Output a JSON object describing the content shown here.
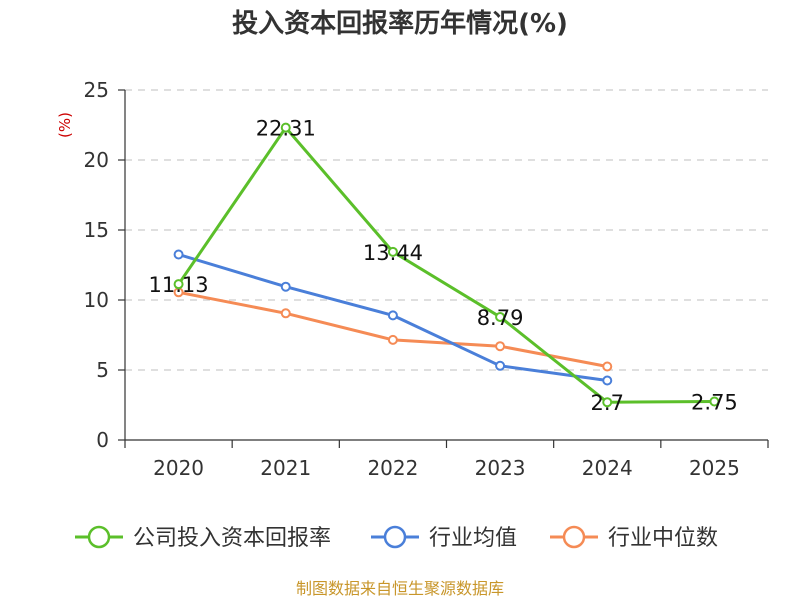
{
  "chart_data": {
    "type": "line",
    "title": "投入资本回报率历年情况(%)",
    "ylabel": "(%)",
    "xlabel": "",
    "categories": [
      "2020",
      "2021",
      "2022",
      "2023",
      "2024",
      "2025"
    ],
    "ylim": [
      0,
      25
    ],
    "yticks": [
      0,
      5,
      10,
      15,
      20,
      25
    ],
    "grid": true,
    "legend_position": "bottom",
    "series": [
      {
        "name": "公司投入资本回报率",
        "color": "#5bbf2a",
        "values": [
          11.13,
          22.31,
          13.44,
          8.79,
          2.7,
          2.75
        ],
        "labels": [
          "11.13",
          "22.31",
          "13.44",
          "8.79",
          "2.7",
          "2.75"
        ]
      },
      {
        "name": "行业均值",
        "color": "#4a7fd9",
        "values": [
          13.25,
          10.95,
          8.9,
          5.3,
          4.25,
          null
        ]
      },
      {
        "name": "行业中位数",
        "color": "#f58b55",
        "values": [
          10.55,
          9.05,
          7.15,
          6.7,
          5.25,
          null
        ]
      }
    ]
  },
  "source": "制图数据来自恒生聚源数据库"
}
